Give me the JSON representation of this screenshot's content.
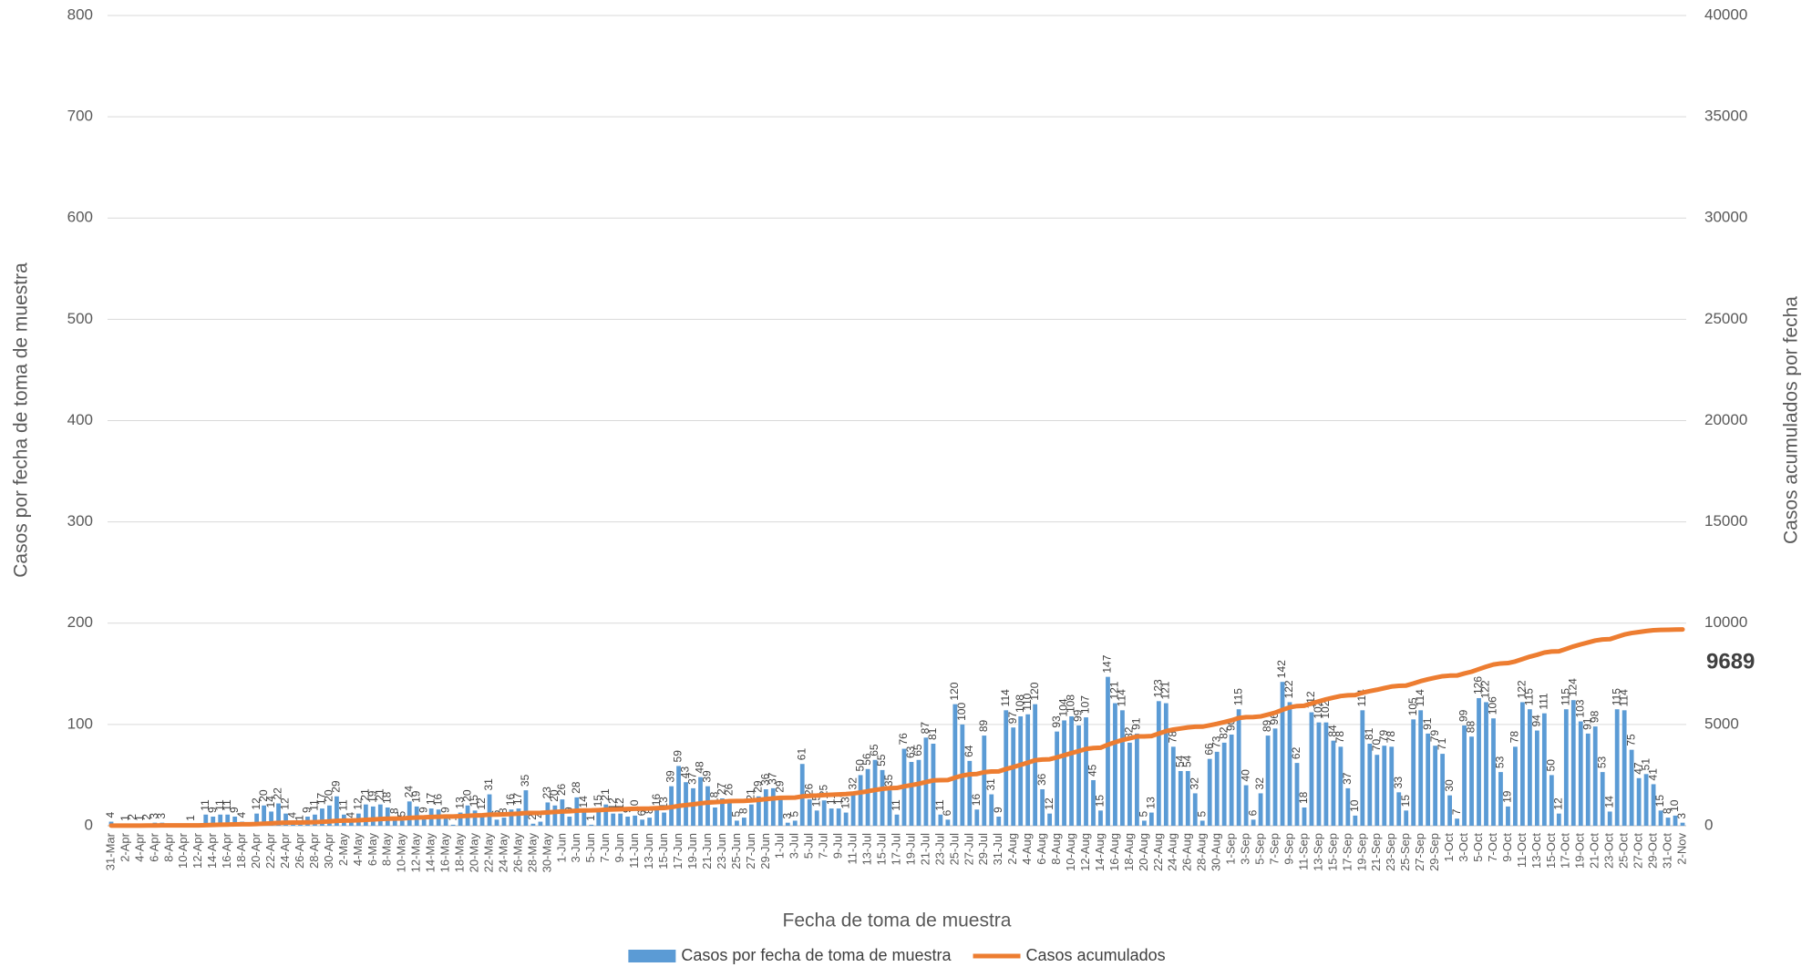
{
  "chart_data": {
    "type": "combo",
    "x_label": "Fecha de toma de muestra",
    "y_label": "Casos por fecha de toma de muestra",
    "y2_label": "Casos acumulados por fecha",
    "annotation": "9689",
    "grid": true,
    "legend": "bottom",
    "ylim": [
      0,
      800
    ],
    "yticks": [
      0,
      100,
      200,
      300,
      400,
      500,
      600,
      700,
      800
    ],
    "y2lim": [
      0,
      40000
    ],
    "y2ticks": [
      0,
      5000,
      10000,
      15000,
      20000,
      25000,
      30000,
      35000,
      40000
    ],
    "categories": [
      "31-Mar",
      null,
      "2-Apr",
      null,
      "4-Apr",
      null,
      "6-Apr",
      null,
      "8-Apr",
      null,
      "10-Apr",
      null,
      "12-Apr",
      null,
      "14-Apr",
      null,
      "16-Apr",
      null,
      "18-Apr",
      null,
      "20-Apr",
      null,
      "22-Apr",
      null,
      "24-Apr",
      null,
      "26-Apr",
      null,
      "28-Apr",
      null,
      "30-Apr",
      null,
      "2-May",
      null,
      "4-May",
      null,
      "6-May",
      null,
      "8-May",
      null,
      "10-May",
      null,
      "12-May",
      null,
      "14-May",
      null,
      "16-May",
      null,
      "18-May",
      null,
      "20-May",
      null,
      "22-May",
      null,
      "24-May",
      null,
      "26-May",
      null,
      "28-May",
      null,
      "30-May",
      null,
      "1-Jun",
      null,
      "3-Jun",
      null,
      "5-Jun",
      null,
      "7-Jun",
      null,
      "9-Jun",
      null,
      "11-Jun",
      null,
      "13-Jun",
      null,
      "15-Jun",
      null,
      "17-Jun",
      null,
      "19-Jun",
      null,
      "21-Jun",
      null,
      "23-Jun",
      null,
      "25-Jun",
      null,
      "27-Jun",
      null,
      "29-Jun",
      null,
      "1-Jul",
      null,
      "3-Jul",
      null,
      "5-Jul",
      null,
      "7-Jul",
      null,
      "9-Jul",
      null,
      "11-Jul",
      null,
      "13-Jul",
      null,
      "15-Jul",
      null,
      "17-Jul",
      null,
      "19-Jul",
      null,
      "21-Jul",
      null,
      "23-Jul",
      null,
      "25-Jul",
      null,
      "27-Jul",
      null,
      "29-Jul",
      null,
      "31-Jul",
      null,
      "2-Aug",
      null,
      "4-Aug",
      null,
      "6-Aug",
      null,
      "8-Aug",
      null,
      "10-Aug",
      null,
      "12-Aug",
      null,
      "14-Aug",
      null,
      "16-Aug",
      null,
      "18-Aug",
      null,
      "20-Aug",
      null,
      "22-Aug",
      null,
      "24-Aug",
      null,
      "26-Aug",
      null,
      "28-Aug",
      null,
      "30-Aug",
      null,
      "1-Sep",
      null,
      "3-Sep",
      null,
      "5-Sep",
      null,
      "7-Sep",
      null,
      "9-Sep",
      null,
      "11-Sep",
      null,
      "13-Sep",
      null,
      "15-Sep",
      null,
      "17-Sep",
      null,
      "19-Sep",
      null,
      "21-Sep",
      null,
      "23-Sep",
      null,
      "25-Sep",
      null,
      "27-Sep",
      null,
      "29-Sep",
      null,
      "1-Oct",
      null,
      "3-Oct",
      null,
      "5-Oct",
      null,
      "7-Oct",
      null,
      "9-Oct",
      null,
      "11-Oct",
      null,
      "13-Oct",
      null,
      "15-Oct",
      null,
      "17-Oct",
      null,
      "19-Oct",
      null,
      "21-Oct",
      null,
      "23-Oct",
      null,
      "25-Oct",
      null,
      "27-Oct",
      null,
      "29-Oct",
      null,
      "31-Oct",
      null,
      "2-Nov"
    ],
    "series": [
      {
        "name": "Casos por fecha de toma de muestra",
        "type": "bar",
        "color": "#5b9bd5",
        "values": [
          4,
          0,
          1,
          2,
          1,
          2,
          3,
          3,
          0,
          0,
          0,
          1,
          0,
          11,
          9,
          11,
          11,
          9,
          4,
          0,
          12,
          20,
          14,
          22,
          12,
          4,
          1,
          9,
          11,
          17,
          20,
          29,
          11,
          4,
          12,
          21,
          19,
          21,
          18,
          8,
          5,
          24,
          19,
          9,
          17,
          16,
          9,
          1,
          13,
          20,
          15,
          12,
          31,
          6,
          8,
          16,
          17,
          35,
          2,
          4,
          23,
          20,
          26,
          9,
          28,
          14,
          1,
          15,
          21,
          12,
          12,
          9,
          10,
          6,
          8,
          16,
          13,
          39,
          59,
          43,
          37,
          48,
          39,
          18,
          27,
          26,
          5,
          8,
          21,
          29,
          36,
          37,
          29,
          3,
          5,
          61,
          26,
          15,
          25,
          17,
          17,
          13,
          32,
          50,
          56,
          65,
          55,
          35,
          11,
          76,
          63,
          65,
          87,
          81,
          11,
          6,
          120,
          100,
          64,
          16,
          89,
          31,
          9,
          114,
          97,
          108,
          110,
          120,
          36,
          12,
          93,
          104,
          108,
          99,
          107,
          45,
          15,
          147,
          121,
          114,
          82,
          91,
          5,
          13,
          123,
          121,
          78,
          54,
          54,
          32,
          5,
          66,
          73,
          82,
          90,
          115,
          40,
          6,
          32,
          89,
          96,
          142,
          122,
          62,
          18,
          112,
          102,
          102,
          84,
          78,
          37,
          10,
          114,
          81,
          70,
          79,
          78,
          33,
          15,
          105,
          114,
          91,
          79,
          71,
          30,
          7,
          99,
          88,
          126,
          122,
          106,
          53,
          19,
          78,
          122,
          115,
          94,
          111,
          50,
          12,
          115,
          124,
          103,
          91,
          98,
          53,
          14,
          115,
          114,
          75,
          47,
          51,
          41,
          15,
          8,
          10,
          3
        ]
      },
      {
        "name": "Casos acumulados",
        "type": "line",
        "axis": "y2",
        "color": "#ed7d31",
        "values": [
          4,
          4,
          5,
          7,
          8,
          10,
          13,
          16,
          16,
          16,
          16,
          17,
          17,
          28,
          37,
          48,
          59,
          68,
          72,
          72,
          84,
          104,
          118,
          140,
          152,
          156,
          157,
          166,
          177,
          194,
          214,
          243,
          254,
          258,
          270,
          291,
          310,
          331,
          349,
          357,
          362,
          386,
          405,
          414,
          431,
          447,
          456,
          457,
          470,
          490,
          505,
          517,
          548,
          554,
          562,
          578,
          595,
          630,
          632,
          636,
          659,
          679,
          705,
          714,
          742,
          756,
          757,
          772,
          793,
          805,
          817,
          826,
          836,
          842,
          850,
          866,
          879,
          918,
          977,
          1020,
          1057,
          1105,
          1144,
          1162,
          1189,
          1215,
          1220,
          1228,
          1249,
          1278,
          1314,
          1351,
          1380,
          1383,
          1388,
          1449,
          1475,
          1490,
          1515,
          1532,
          1549,
          1562,
          1594,
          1644,
          1700,
          1765,
          1820,
          1855,
          1866,
          1942,
          2005,
          2070,
          2157,
          2238,
          2249,
          2255,
          2375,
          2475,
          2539,
          2555,
          2644,
          2675,
          2684,
          2798,
          2895,
          3003,
          3113,
          3233,
          3269,
          3281,
          3374,
          3478,
          3586,
          3685,
          3792,
          3837,
          3852,
          3999,
          4120,
          4234,
          4316,
          4407,
          4412,
          4425,
          4548,
          4669,
          4747,
          4801,
          4855,
          4887,
          4892,
          4958,
          5031,
          5113,
          5203,
          5318,
          5358,
          5364,
          5396,
          5485,
          5581,
          5723,
          5845,
          5907,
          5925,
          6037,
          6139,
          6241,
          6325,
          6403,
          6440,
          6450,
          6564,
          6645,
          6715,
          6794,
          6872,
          6905,
          6920,
          7025,
          7139,
          7230,
          7309,
          7380,
          7410,
          7417,
          7516,
          7604,
          7730,
          7852,
          7958,
          8011,
          8030,
          8108,
          8230,
          8345,
          8439,
          8550,
          8600,
          8612,
          8727,
          8851,
          8954,
          9045,
          9143,
          9196,
          9210,
          9325,
          9439,
          9514,
          9561,
          9612,
          9653,
          9668,
          9676,
          9686,
          9689
        ]
      }
    ]
  }
}
